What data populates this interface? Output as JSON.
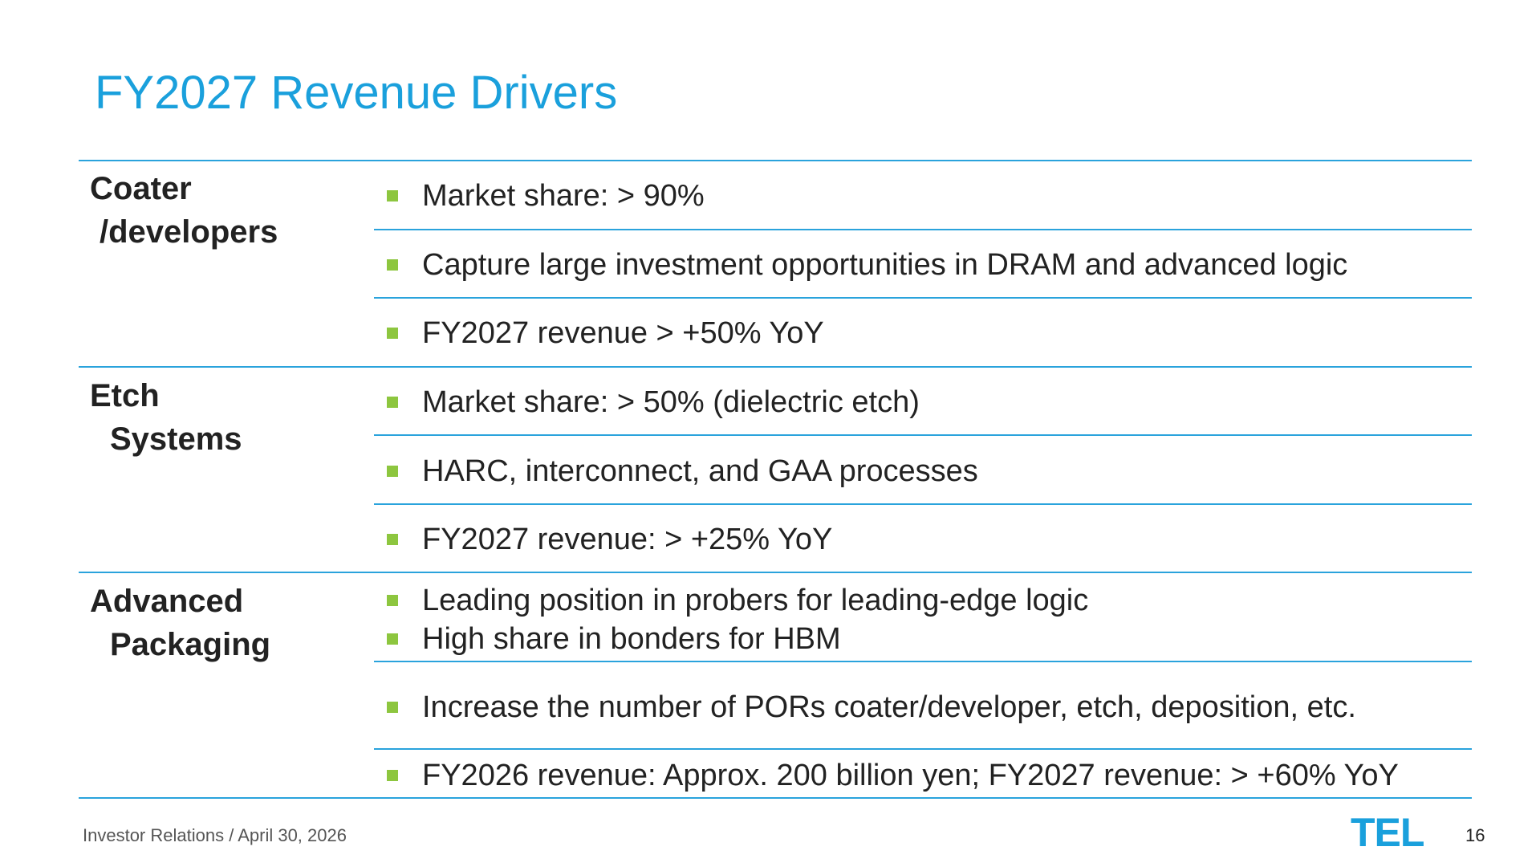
{
  "title": "FY2027 Revenue Drivers",
  "colors": {
    "accent": "#1aa0dc",
    "bullet": "#8dc63f",
    "rule": "#2aa3dc"
  },
  "sections": [
    {
      "name_line1": "Coater",
      "name_line2": "/developers",
      "bullets": [
        "Market share: > 90%",
        "Capture large investment opportunities in DRAM and advanced logic",
        "FY2027 revenue  > +50% YoY"
      ]
    },
    {
      "name_line1": "Etch",
      "name_line2": "Systems",
      "bullets": [
        "Market share: > 50% (dielectric etch)",
        "HARC, interconnect, and GAA processes",
        "FY2027 revenue: > +25% YoY"
      ]
    },
    {
      "name_line1": "Advanced",
      "name_line2": "Packaging",
      "bullets": [
        "Leading position in probers for leading-edge logic",
        "High share in bonders for HBM",
        "Increase the number of PORs coater/developer, etch, deposition, etc.",
        "FY2026 revenue: Approx. 200 billion yen; FY2027 revenue: > +60% YoY"
      ]
    }
  ],
  "footer": {
    "text": "Investor Relations / April 30, 2026",
    "page": "16"
  },
  "logo": {
    "text": "TEL",
    "icon": "tel-logo-icon"
  }
}
